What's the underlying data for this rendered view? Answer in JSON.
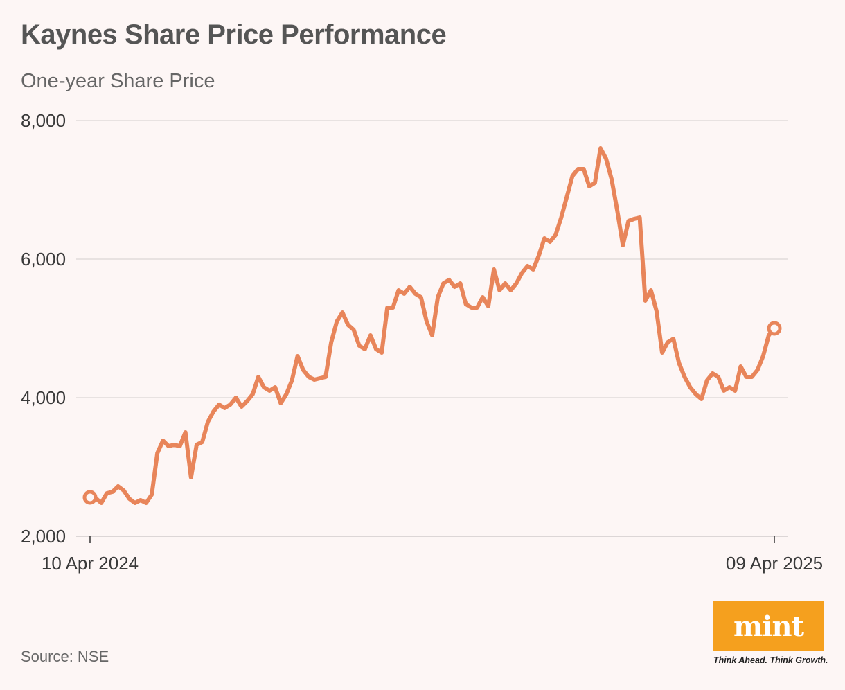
{
  "title": "Kaynes Share Price Performance",
  "subtitle": "One-year Share Price",
  "source": "Source: NSE",
  "logo": {
    "name": "mint",
    "tagline": "Think Ahead. Think Growth."
  },
  "colors": {
    "line": "#e8855a",
    "grid": "#dcd6d5",
    "logo_bg": "#f5a01e"
  },
  "chart_data": {
    "type": "line",
    "title": "Kaynes Share Price Performance",
    "subtitle": "One-year Share Price",
    "xlabel": "",
    "ylabel": "",
    "ylim": [
      2000,
      8000
    ],
    "yticks": [
      2000,
      4000,
      6000,
      8000
    ],
    "ytick_labels": [
      "2,000",
      "4,000",
      "6,000",
      "8,000"
    ],
    "xtick_labels": [
      "10 Apr 2024",
      "09 Apr 2025"
    ],
    "grid": true,
    "series": [
      {
        "name": "Share Price",
        "x": [
          0,
          3,
          6,
          9,
          12,
          15,
          18,
          21,
          24,
          27,
          30,
          33,
          36,
          39,
          42,
          45,
          48,
          51,
          54,
          57,
          60,
          63,
          66,
          69,
          72,
          75,
          78,
          81,
          84,
          87,
          90,
          93,
          96,
          99,
          102,
          105,
          108,
          111,
          114,
          117,
          120,
          123,
          126,
          129,
          132,
          135,
          138,
          141,
          144,
          147,
          150,
          153,
          156,
          159,
          162,
          165,
          168,
          171,
          174,
          177,
          180,
          183,
          186,
          189,
          192,
          195,
          198,
          201,
          204,
          207,
          210,
          213,
          216,
          219,
          222,
          225,
          228,
          231,
          234,
          237,
          240,
          243,
          246,
          249,
          252,
          255,
          258,
          261,
          264,
          267,
          270,
          273,
          276,
          279,
          282,
          285,
          288,
          291,
          294,
          297,
          300,
          303,
          306,
          309,
          312,
          315,
          318,
          321,
          324,
          327,
          330,
          333,
          336,
          339,
          342,
          345,
          348,
          351,
          354,
          357,
          360,
          363,
          366
        ],
        "values": [
          2560,
          2550,
          2480,
          2620,
          2640,
          2720,
          2660,
          2540,
          2480,
          2520,
          2480,
          2600,
          3200,
          3380,
          3300,
          3320,
          3300,
          3500,
          2850,
          3320,
          3360,
          3650,
          3800,
          3900,
          3850,
          3900,
          4000,
          3870,
          3950,
          4050,
          4300,
          4150,
          4100,
          4150,
          3920,
          4050,
          4250,
          4600,
          4400,
          4300,
          4260,
          4280,
          4300,
          4800,
          5100,
          5230,
          5050,
          4980,
          4750,
          4700,
          4900,
          4700,
          4650,
          5300,
          5300,
          5550,
          5500,
          5600,
          5500,
          5450,
          5100,
          4900,
          5450,
          5650,
          5700,
          5600,
          5650,
          5350,
          5300,
          5300,
          5450,
          5320,
          5850,
          5550,
          5650,
          5550,
          5650,
          5800,
          5900,
          5850,
          6050,
          6300,
          6250,
          6350,
          6600,
          6900,
          7200,
          7300,
          7300,
          7050,
          7100,
          7600,
          7450,
          7150,
          6700,
          6200,
          6550,
          6580,
          6600,
          5400,
          5550,
          5250,
          4650,
          4800,
          4850,
          4500,
          4300,
          4150,
          4050,
          3980,
          4250,
          4350,
          4300,
          4100,
          4150,
          4100,
          4450,
          4300,
          4300,
          4400,
          4600,
          4900,
          5000
        ]
      }
    ]
  }
}
